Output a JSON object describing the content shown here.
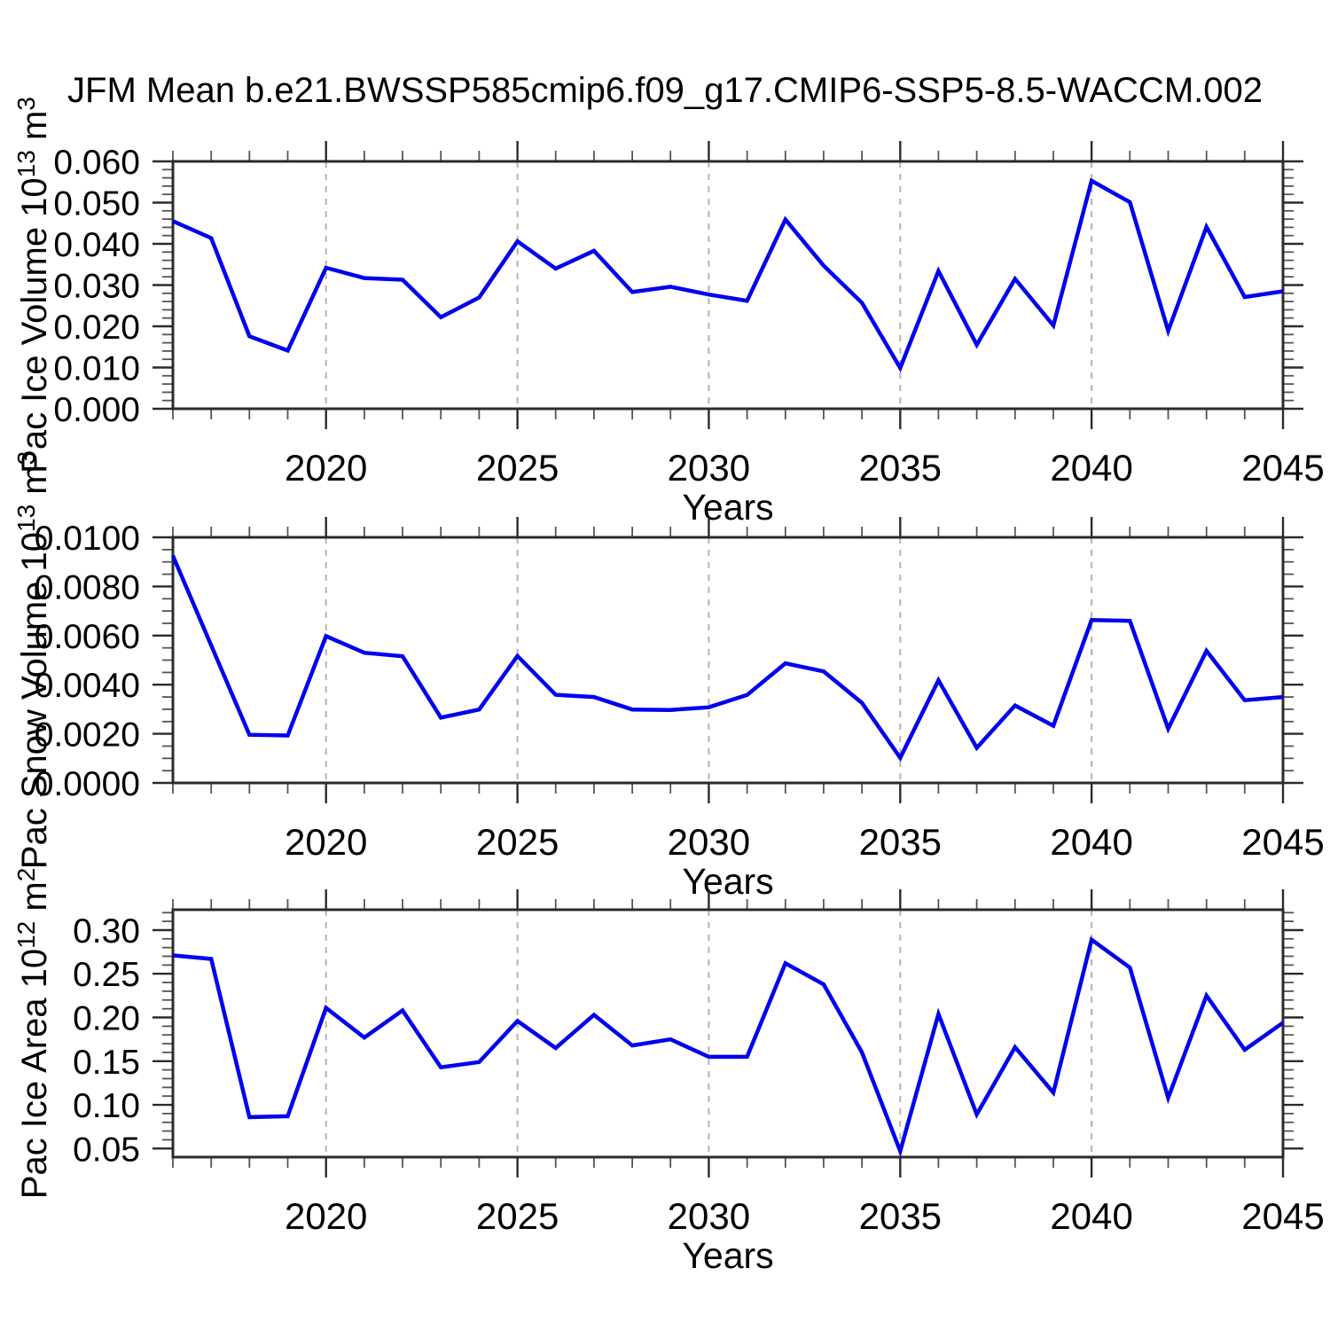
{
  "title": "JFM Mean b.e21.BWSSP585cmip6.f09_g17.CMIP6-SSP5-8.5-WACCM.002",
  "colors": {
    "line": "#0000ee",
    "grid": "#b3b3b3",
    "axis": "#2b2b2b",
    "minor_tick": "#555555",
    "text": "#000000",
    "background": "#ffffff"
  },
  "chart_data": [
    {
      "type": "line",
      "name": "pac-ice-volume",
      "ylabel": "Pac Ice Volume 10^13 m^3",
      "ylabel_parts": [
        {
          "t": "Pac Ice Volume 10"
        },
        {
          "t": "13",
          "sup": true
        },
        {
          "t": " m"
        },
        {
          "t": "3",
          "sup": true
        }
      ],
      "xlabel": "Years",
      "x": [
        2016,
        2017,
        2018,
        2019,
        2020,
        2021,
        2022,
        2023,
        2024,
        2025,
        2026,
        2027,
        2028,
        2029,
        2030,
        2031,
        2032,
        2033,
        2034,
        2035,
        2036,
        2037,
        2038,
        2039,
        2040,
        2041,
        2042,
        2043,
        2044,
        2045
      ],
      "values": [
        0.0455,
        0.0414,
        0.0176,
        0.0141,
        0.0342,
        0.0317,
        0.0313,
        0.0222,
        0.027,
        0.0406,
        0.034,
        0.0383,
        0.0283,
        0.0296,
        0.0277,
        0.0262,
        0.0459,
        0.0347,
        0.0257,
        0.0099,
        0.0334,
        0.0155,
        0.0315,
        0.0202,
        0.0553,
        0.0501,
        0.0189,
        0.0441,
        0.0271,
        0.0285
      ],
      "xlim": [
        2016,
        2045
      ],
      "ylim": [
        0,
        0.06
      ],
      "ytick_major": 0.01,
      "ytick_minor": 0.002,
      "ytick_decimals": 3,
      "xticks_labeled": [
        2020,
        2025,
        2030,
        2035,
        2040,
        2045
      ],
      "grid_years": [
        2020,
        2025,
        2030,
        2035,
        2040
      ],
      "grid": "vertical-dashed",
      "legend": "none"
    },
    {
      "type": "line",
      "name": "pac-snow-volume",
      "ylabel": "Pac Snow Volume 10^13 m^3",
      "ylabel_parts": [
        {
          "t": "Pac Snow Volume 10"
        },
        {
          "t": "13",
          "sup": true
        },
        {
          "t": " m"
        },
        {
          "t": "3",
          "sup": true
        }
      ],
      "xlabel": "Years",
      "x": [
        2016,
        2017,
        2018,
        2019,
        2020,
        2021,
        2022,
        2023,
        2024,
        2025,
        2026,
        2027,
        2028,
        2029,
        2030,
        2031,
        2032,
        2033,
        2034,
        2035,
        2036,
        2037,
        2038,
        2039,
        2040,
        2041,
        2042,
        2043,
        2044,
        2045
      ],
      "values": [
        0.00925,
        0.0056,
        0.00196,
        0.00193,
        0.00598,
        0.0053,
        0.00516,
        0.00266,
        0.00299,
        0.00517,
        0.00359,
        0.0035,
        0.00299,
        0.00297,
        0.00308,
        0.00358,
        0.00487,
        0.00454,
        0.00326,
        0.00102,
        0.00418,
        0.00143,
        0.00315,
        0.00233,
        0.00663,
        0.0066,
        0.00221,
        0.00538,
        0.00337,
        0.0035
      ],
      "xlim": [
        2016,
        2045
      ],
      "ylim": [
        0,
        0.01
      ],
      "ytick_major": 0.002,
      "ytick_minor": 0.0005,
      "ytick_decimals": 4,
      "xticks_labeled": [
        2020,
        2025,
        2030,
        2035,
        2040,
        2045
      ],
      "grid_years": [
        2020,
        2025,
        2030,
        2035,
        2040
      ],
      "grid": "vertical-dashed",
      "legend": "none"
    },
    {
      "type": "line",
      "name": "pac-ice-area",
      "ylabel": "Pac Ice Area 10^12 m^2",
      "ylabel_parts": [
        {
          "t": "Pac Ice Area 10"
        },
        {
          "t": "12",
          "sup": true
        },
        {
          "t": " m"
        },
        {
          "t": "2",
          "sup": true
        }
      ],
      "xlabel": "Years",
      "x": [
        2016,
        2017,
        2018,
        2019,
        2020,
        2021,
        2022,
        2023,
        2024,
        2025,
        2026,
        2027,
        2028,
        2029,
        2030,
        2031,
        2032,
        2033,
        2034,
        2035,
        2036,
        2037,
        2038,
        2039,
        2040,
        2041,
        2042,
        2043,
        2044,
        2045
      ],
      "values": [
        0.271,
        0.267,
        0.086,
        0.087,
        0.211,
        0.177,
        0.208,
        0.143,
        0.149,
        0.196,
        0.165,
        0.203,
        0.168,
        0.175,
        0.155,
        0.155,
        0.262,
        0.238,
        0.16,
        0.047,
        0.204,
        0.089,
        0.166,
        0.114,
        0.289,
        0.257,
        0.108,
        0.225,
        0.163,
        0.194
      ],
      "xlim": [
        2016,
        2045
      ],
      "ylim": [
        0.0402,
        0.3233
      ],
      "ytick_major": 0.05,
      "ytick_minor": 0.01,
      "ytick_decimals": 2,
      "xticks_labeled": [
        2020,
        2025,
        2030,
        2035,
        2040,
        2045
      ],
      "grid_years": [
        2020,
        2025,
        2030,
        2035,
        2040
      ],
      "grid": "vertical-dashed",
      "legend": "none"
    }
  ]
}
